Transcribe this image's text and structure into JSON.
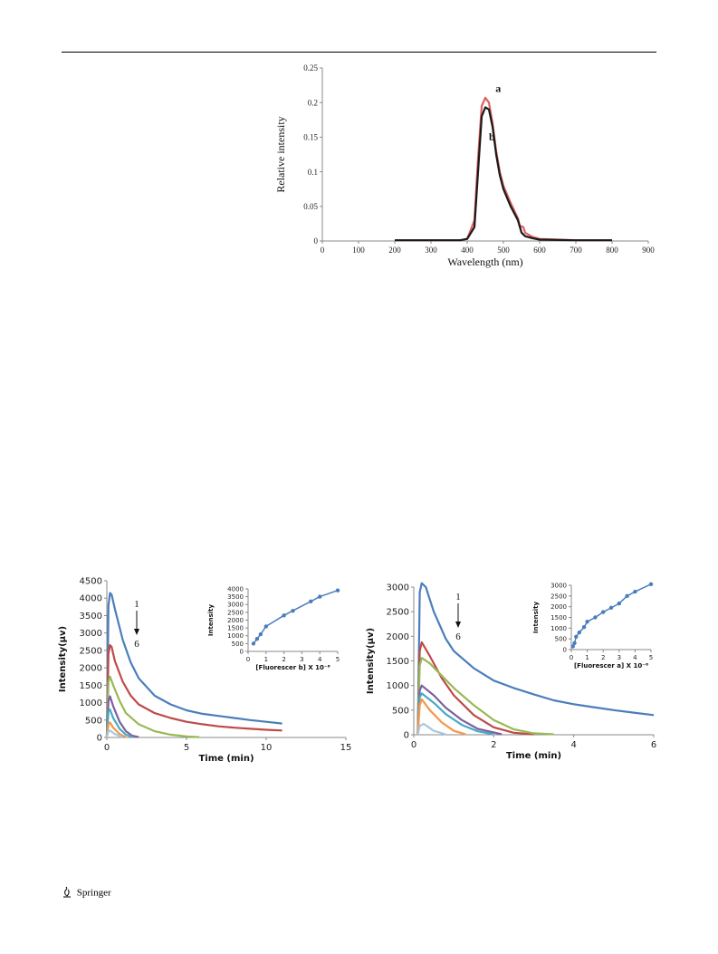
{
  "footer": {
    "publisher": "Springer"
  },
  "chart_data": [
    {
      "type": "line",
      "xlabel": "Wavelength (nm)",
      "ylabel": "Relative intensity",
      "xlim": [
        0,
        900
      ],
      "ylim": [
        0,
        0.25
      ],
      "xticks": [
        "0",
        "100",
        "200",
        "300",
        "400",
        "500",
        "600",
        "700",
        "800",
        "900"
      ],
      "yticks": [
        "0",
        "0.05",
        "0.1",
        "0.15",
        "0.2",
        "0.25"
      ],
      "grid": false,
      "annotations": [
        "a",
        "b"
      ],
      "series": [
        {
          "name": "a",
          "color": "#e06060",
          "x": [
            200,
            300,
            380,
            400,
            420,
            430,
            440,
            450,
            460,
            470,
            480,
            490,
            500,
            520,
            540,
            545,
            555,
            560,
            580,
            600,
            700,
            800
          ],
          "y": [
            0.001,
            0.001,
            0.001,
            0.003,
            0.03,
            0.12,
            0.195,
            0.207,
            0.2,
            0.17,
            0.13,
            0.1,
            0.08,
            0.055,
            0.033,
            0.022,
            0.02,
            0.012,
            0.006,
            0.003,
            0.001,
            0.001
          ]
        },
        {
          "name": "b",
          "color": "#1a1a1a",
          "x": [
            200,
            300,
            380,
            400,
            420,
            430,
            440,
            450,
            460,
            470,
            480,
            490,
            500,
            520,
            540,
            550,
            560,
            580,
            600,
            700,
            800
          ],
          "y": [
            0.001,
            0.001,
            0.001,
            0.003,
            0.02,
            0.1,
            0.18,
            0.193,
            0.19,
            0.165,
            0.125,
            0.095,
            0.075,
            0.05,
            0.03,
            0.012,
            0.007,
            0.004,
            0.002,
            0.001,
            0.001
          ]
        }
      ]
    },
    {
      "type": "line",
      "xlabel": "Time (min)",
      "ylabel": "Intensity(µv)",
      "xlim": [
        0,
        15
      ],
      "ylim": [
        0,
        4500
      ],
      "xticks": [
        "0",
        "5",
        "10",
        "15"
      ],
      "yticks": [
        "0",
        "500",
        "1000",
        "1500",
        "2000",
        "2500",
        "3000",
        "3500",
        "4000",
        "4500"
      ],
      "grid": false,
      "annotations": [
        "1",
        "6"
      ],
      "series": [
        {
          "color": "#4a7ebb",
          "x": [
            0,
            0.1,
            0.2,
            0.3,
            0.5,
            1,
            1.5,
            2,
            3,
            4,
            5,
            6,
            7,
            8,
            9,
            10,
            11
          ],
          "y": [
            0,
            3800,
            4150,
            4100,
            3700,
            2800,
            2150,
            1700,
            1200,
            950,
            780,
            680,
            620,
            560,
            500,
            450,
            400
          ]
        },
        {
          "color": "#be4b48",
          "x": [
            0,
            0.1,
            0.2,
            0.3,
            0.5,
            1,
            1.5,
            2,
            3,
            4,
            5,
            6,
            7,
            8,
            9,
            10,
            11
          ],
          "y": [
            0,
            2400,
            2650,
            2600,
            2200,
            1600,
            1200,
            950,
            700,
            560,
            450,
            380,
            320,
            280,
            250,
            220,
            200
          ]
        },
        {
          "color": "#98b954",
          "x": [
            0,
            0.1,
            0.2,
            0.4,
            0.8,
            1.2,
            2,
            3,
            4,
            5,
            5.8
          ],
          "y": [
            0,
            1600,
            1750,
            1500,
            1050,
            700,
            380,
            180,
            80,
            30,
            10
          ]
        },
        {
          "color": "#7d60a0",
          "x": [
            0,
            0.1,
            0.2,
            0.4,
            0.8,
            1.2,
            1.6,
            2
          ],
          "y": [
            0,
            1050,
            1180,
            900,
            450,
            180,
            50,
            10
          ]
        },
        {
          "color": "#46aac5",
          "x": [
            0,
            0.1,
            0.2,
            0.4,
            0.8,
            1.2,
            1.6
          ],
          "y": [
            0,
            750,
            800,
            560,
            250,
            80,
            10
          ]
        },
        {
          "color": "#f79646",
          "x": [
            0,
            0.1,
            0.2,
            0.4,
            0.8,
            1.2
          ],
          "y": [
            0,
            380,
            430,
            280,
            100,
            10
          ]
        },
        {
          "color": "#a5c8e4",
          "x": [
            0,
            0.1,
            0.2,
            0.5,
            1
          ],
          "y": [
            0,
            180,
            200,
            100,
            10
          ]
        }
      ]
    },
    {
      "type": "scatter",
      "xlabel": "[Fluorescer b] X 10⁻⁶",
      "ylabel": "Intensity",
      "xlim": [
        0,
        5
      ],
      "ylim": [
        0,
        4000
      ],
      "xticks": [
        "0",
        "1",
        "2",
        "3",
        "4",
        "5"
      ],
      "yticks": [
        "0",
        "500",
        "1000",
        "1500",
        "2000",
        "2500",
        "3000",
        "3500",
        "4000"
      ],
      "series": [
        {
          "color": "#4a7ebb",
          "x": [
            0.3,
            0.5,
            0.7,
            1,
            2,
            2.5,
            3.5,
            4,
            5
          ],
          "y": [
            500,
            800,
            1100,
            1600,
            2300,
            2600,
            3200,
            3500,
            3900
          ]
        }
      ]
    },
    {
      "type": "line",
      "xlabel": "Time (min)",
      "ylabel": "Intensity(µv)",
      "xlim": [
        0,
        6
      ],
      "ylim": [
        0,
        3000
      ],
      "xticks": [
        "0",
        "2",
        "4",
        "6"
      ],
      "yticks": [
        "0",
        "500",
        "1000",
        "1500",
        "2000",
        "2500",
        "3000"
      ],
      "grid": false,
      "annotations": [
        "1",
        "6"
      ],
      "series": [
        {
          "color": "#4a7ebb",
          "x": [
            0.1,
            0.15,
            0.2,
            0.3,
            0.5,
            0.8,
            1,
            1.5,
            2,
            2.5,
            3,
            3.5,
            4,
            4.5,
            5,
            5.5,
            6
          ],
          "y": [
            0,
            2900,
            3080,
            3000,
            2500,
            1950,
            1700,
            1350,
            1100,
            950,
            820,
            700,
            620,
            560,
            500,
            450,
            400
          ]
        },
        {
          "color": "#be4b48",
          "x": [
            0.1,
            0.15,
            0.2,
            0.4,
            0.7,
            1,
            1.5,
            2,
            2.5,
            3
          ],
          "y": [
            0,
            1700,
            1880,
            1600,
            1150,
            800,
            400,
            150,
            40,
            10
          ]
        },
        {
          "color": "#98b954",
          "x": [
            0.1,
            0.15,
            0.2,
            0.4,
            0.7,
            1,
            1.5,
            2,
            2.5,
            3,
            3.5
          ],
          "y": [
            0,
            1400,
            1560,
            1450,
            1200,
            950,
            600,
            300,
            110,
            30,
            10
          ]
        },
        {
          "color": "#7d60a0",
          "x": [
            0.1,
            0.15,
            0.2,
            0.5,
            0.8,
            1.2,
            1.6,
            2.2
          ],
          "y": [
            0,
            900,
            1000,
            800,
            550,
            300,
            120,
            10
          ]
        },
        {
          "color": "#46aac5",
          "x": [
            0.1,
            0.15,
            0.2,
            0.5,
            0.8,
            1.2,
            1.6,
            2
          ],
          "y": [
            0,
            760,
            840,
            650,
            420,
            200,
            70,
            10
          ]
        },
        {
          "color": "#f79646",
          "x": [
            0.1,
            0.15,
            0.2,
            0.4,
            0.7,
            1,
            1.3
          ],
          "y": [
            0,
            600,
            720,
            500,
            250,
            80,
            10
          ]
        },
        {
          "color": "#a5c8e4",
          "x": [
            0.1,
            0.15,
            0.25,
            0.5,
            0.8
          ],
          "y": [
            0,
            180,
            220,
            80,
            10
          ]
        }
      ]
    },
    {
      "type": "scatter",
      "xlabel": "[Fluorescer a] X 10⁻⁶",
      "ylabel": "Intensity",
      "xlim": [
        0,
        5
      ],
      "ylim": [
        0,
        3000
      ],
      "xticks": [
        "0",
        "1",
        "2",
        "3",
        "4",
        "5"
      ],
      "yticks": [
        "0",
        "500",
        "1000",
        "1500",
        "2000",
        "2500",
        "3000"
      ],
      "series": [
        {
          "color": "#4a7ebb",
          "x": [
            0.1,
            0.2,
            0.3,
            0.5,
            0.8,
            1,
            1.5,
            2,
            2.5,
            3,
            3.5,
            4,
            5
          ],
          "y": [
            150,
            300,
            600,
            800,
            1050,
            1300,
            1500,
            1750,
            1950,
            2150,
            2500,
            2700,
            3050
          ]
        }
      ]
    }
  ]
}
